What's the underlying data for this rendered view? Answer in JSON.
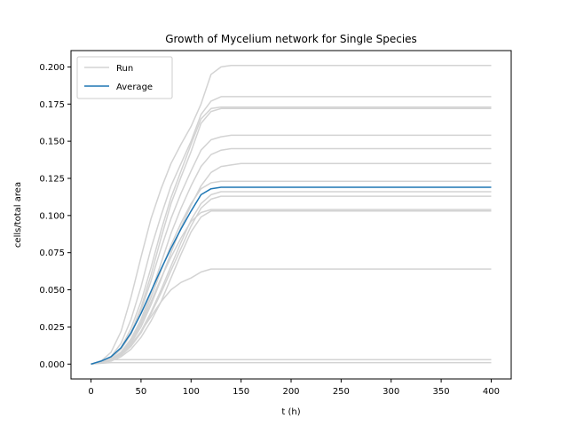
{
  "chart_data": {
    "type": "line",
    "title": "Growth of Mycelium network for Single Species",
    "xlabel": "t (h)",
    "ylabel": "cells/total area",
    "xlim": [
      -20,
      420
    ],
    "ylim": [
      -0.01,
      0.211
    ],
    "xticks": [
      0,
      50,
      100,
      150,
      200,
      250,
      300,
      350,
      400
    ],
    "yticks": [
      0.0,
      0.025,
      0.05,
      0.075,
      0.1,
      0.125,
      0.15,
      0.175,
      0.2
    ],
    "ytick_labels": [
      "0.000",
      "0.025",
      "0.050",
      "0.075",
      "0.100",
      "0.125",
      "0.150",
      "0.175",
      "0.200"
    ],
    "legend": {
      "position": "top-left",
      "entries": [
        {
          "label": "Run",
          "color": "#d3d3d3"
        },
        {
          "label": "Average",
          "color": "#1f77b4"
        }
      ]
    },
    "grid": false,
    "series": [
      {
        "name": "Run",
        "color": "#d3d3d3",
        "x": [
          0,
          10,
          20,
          30,
          40,
          50,
          60,
          70,
          80,
          90,
          100,
          110,
          120,
          130,
          140,
          150,
          400
        ],
        "y": [
          0,
          0.002,
          0.008,
          0.022,
          0.045,
          0.072,
          0.098,
          0.118,
          0.135,
          0.148,
          0.16,
          0.175,
          0.195,
          0.2,
          0.201,
          0.201,
          0.201
        ]
      },
      {
        "name": "Run",
        "color": "#d3d3d3",
        "x": [
          0,
          10,
          20,
          30,
          40,
          50,
          60,
          70,
          80,
          90,
          100,
          110,
          120,
          130,
          140,
          400
        ],
        "y": [
          0,
          0.001,
          0.005,
          0.014,
          0.03,
          0.052,
          0.078,
          0.1,
          0.12,
          0.135,
          0.15,
          0.168,
          0.177,
          0.18,
          0.18,
          0.18
        ]
      },
      {
        "name": "Run",
        "color": "#d3d3d3",
        "x": [
          0,
          10,
          20,
          30,
          40,
          50,
          60,
          70,
          80,
          90,
          100,
          110,
          120,
          130,
          140,
          400
        ],
        "y": [
          0,
          0.001,
          0.004,
          0.011,
          0.024,
          0.042,
          0.065,
          0.09,
          0.112,
          0.13,
          0.148,
          0.165,
          0.172,
          0.173,
          0.173,
          0.173
        ]
      },
      {
        "name": "Run",
        "color": "#d3d3d3",
        "x": [
          0,
          10,
          20,
          30,
          40,
          50,
          60,
          70,
          80,
          90,
          100,
          110,
          120,
          130,
          140,
          400
        ],
        "y": [
          0,
          0.001,
          0.004,
          0.01,
          0.021,
          0.038,
          0.06,
          0.085,
          0.108,
          0.126,
          0.143,
          0.162,
          0.17,
          0.172,
          0.172,
          0.172
        ]
      },
      {
        "name": "Run",
        "color": "#d3d3d3",
        "x": [
          0,
          10,
          20,
          30,
          40,
          50,
          60,
          70,
          80,
          90,
          100,
          110,
          120,
          130,
          140,
          150,
          400
        ],
        "y": [
          0,
          0.001,
          0.004,
          0.01,
          0.02,
          0.036,
          0.056,
          0.078,
          0.098,
          0.115,
          0.13,
          0.144,
          0.151,
          0.153,
          0.154,
          0.154,
          0.154
        ]
      },
      {
        "name": "Run",
        "color": "#d3d3d3",
        "x": [
          0,
          10,
          20,
          30,
          40,
          50,
          60,
          70,
          80,
          90,
          100,
          110,
          120,
          130,
          140,
          150,
          400
        ],
        "y": [
          0,
          0.001,
          0.003,
          0.008,
          0.017,
          0.03,
          0.048,
          0.068,
          0.088,
          0.105,
          0.12,
          0.133,
          0.141,
          0.144,
          0.145,
          0.145,
          0.145
        ]
      },
      {
        "name": "Run",
        "color": "#d3d3d3",
        "x": [
          0,
          10,
          20,
          30,
          40,
          50,
          60,
          70,
          80,
          90,
          100,
          110,
          120,
          130,
          140,
          150,
          400
        ],
        "y": [
          0,
          0.001,
          0.003,
          0.007,
          0.014,
          0.025,
          0.04,
          0.057,
          0.075,
          0.092,
          0.107,
          0.12,
          0.129,
          0.133,
          0.134,
          0.135,
          0.135
        ]
      },
      {
        "name": "Run",
        "color": "#d3d3d3",
        "x": [
          0,
          10,
          20,
          30,
          40,
          50,
          60,
          70,
          80,
          90,
          100,
          110,
          120,
          130,
          140,
          400
        ],
        "y": [
          0,
          0.001,
          0.003,
          0.008,
          0.016,
          0.028,
          0.045,
          0.063,
          0.08,
          0.095,
          0.108,
          0.118,
          0.122,
          0.123,
          0.123,
          0.123
        ]
      },
      {
        "name": "Run",
        "color": "#d3d3d3",
        "x": [
          0,
          10,
          20,
          30,
          40,
          50,
          60,
          70,
          80,
          90,
          100,
          110,
          120,
          130,
          140,
          400
        ],
        "y": [
          0,
          0.001,
          0.003,
          0.006,
          0.012,
          0.022,
          0.035,
          0.05,
          0.066,
          0.082,
          0.097,
          0.108,
          0.114,
          0.116,
          0.116,
          0.116
        ]
      },
      {
        "name": "Run",
        "color": "#d3d3d3",
        "x": [
          0,
          10,
          20,
          30,
          40,
          50,
          60,
          70,
          80,
          90,
          100,
          110,
          120,
          130,
          140,
          400
        ],
        "y": [
          0,
          0.001,
          0.003,
          0.006,
          0.012,
          0.021,
          0.034,
          0.048,
          0.063,
          0.078,
          0.093,
          0.105,
          0.111,
          0.113,
          0.113,
          0.113
        ]
      },
      {
        "name": "Run",
        "color": "#d3d3d3",
        "x": [
          0,
          10,
          20,
          30,
          40,
          50,
          60,
          70,
          80,
          90,
          100,
          110,
          120,
          130,
          400
        ],
        "y": [
          0,
          0.001,
          0.003,
          0.007,
          0.015,
          0.027,
          0.042,
          0.058,
          0.072,
          0.085,
          0.096,
          0.102,
          0.104,
          0.104,
          0.104
        ]
      },
      {
        "name": "Run",
        "color": "#d3d3d3",
        "x": [
          0,
          10,
          20,
          30,
          40,
          50,
          60,
          70,
          80,
          90,
          100,
          110,
          120,
          130,
          400
        ],
        "y": [
          0,
          0.001,
          0.002,
          0.005,
          0.01,
          0.018,
          0.029,
          0.042,
          0.058,
          0.074,
          0.089,
          0.099,
          0.103,
          0.103,
          0.103
        ]
      },
      {
        "name": "Run",
        "color": "#d3d3d3",
        "x": [
          0,
          10,
          20,
          30,
          40,
          50,
          60,
          70,
          80,
          90,
          100,
          110,
          120,
          130,
          400
        ],
        "y": [
          0,
          0.001,
          0.003,
          0.007,
          0.013,
          0.022,
          0.032,
          0.042,
          0.05,
          0.055,
          0.058,
          0.062,
          0.064,
          0.064,
          0.064
        ]
      },
      {
        "name": "Run",
        "color": "#d3d3d3",
        "x": [
          0,
          10,
          20,
          400
        ],
        "y": [
          0,
          0.002,
          0.003,
          0.003
        ]
      },
      {
        "name": "Run",
        "color": "#d3d3d3",
        "x": [
          0,
          10,
          20,
          400
        ],
        "y": [
          0,
          0.0005,
          0.001,
          0.001
        ]
      },
      {
        "name": "Average",
        "color": "#1f77b4",
        "x": [
          0,
          10,
          20,
          30,
          40,
          50,
          60,
          70,
          80,
          90,
          100,
          110,
          120,
          130,
          140,
          150,
          400
        ],
        "y": [
          0,
          0.002,
          0.005,
          0.011,
          0.021,
          0.034,
          0.049,
          0.064,
          0.078,
          0.091,
          0.103,
          0.114,
          0.118,
          0.119,
          0.119,
          0.119,
          0.119
        ]
      }
    ]
  }
}
